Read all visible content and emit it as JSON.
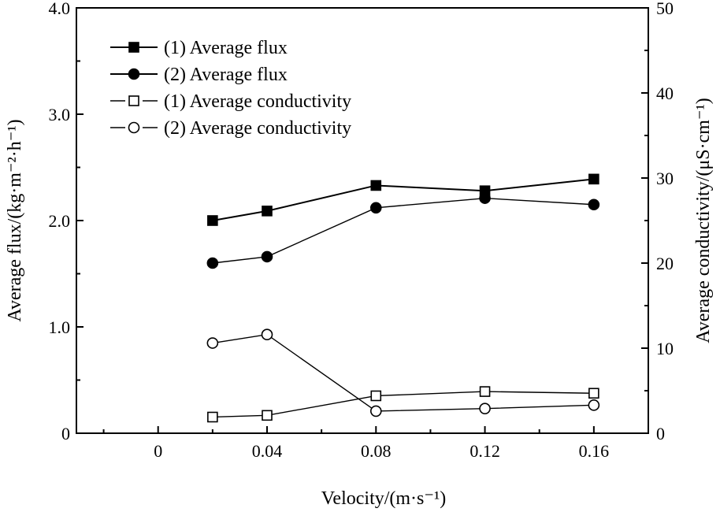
{
  "chart_data": {
    "type": "line",
    "xlabel": "Velocity/(m·s⁻¹)",
    "ylabel_left": "Average flux/(kg·m⁻²·h⁻¹)",
    "ylabel_right": "Average conductivity/(μS·cm⁻¹)",
    "xlim": [
      -0.03,
      0.18
    ],
    "ylim_left": [
      0,
      4.0
    ],
    "ylim_right": [
      0,
      50
    ],
    "x_ticks": [
      0,
      0.04,
      0.08,
      0.12,
      0.16
    ],
    "x_tick_labels": [
      "0",
      "0.04",
      "0.08",
      "0.12",
      "0.16"
    ],
    "y_left_ticks": [
      0,
      1.0,
      2.0,
      3.0,
      4.0
    ],
    "y_left_tick_labels": [
      "0",
      "1.0",
      "2.0",
      "3.0",
      "4.0"
    ],
    "y_right_ticks": [
      0,
      10,
      20,
      30,
      40,
      50
    ],
    "y_right_tick_labels": [
      "0",
      "10",
      "20",
      "30",
      "40",
      "50"
    ],
    "grid": false,
    "legend_position": "top-left",
    "series": [
      {
        "name": "(1) Average flux",
        "axis": "left",
        "marker": "square-filled",
        "color": "#000000",
        "x": [
          0.02,
          0.04,
          0.08,
          0.12,
          0.16
        ],
        "y": [
          2.0,
          2.09,
          2.33,
          2.28,
          2.39
        ]
      },
      {
        "name": "(2) Average flux",
        "axis": "left",
        "marker": "circle-filled",
        "color": "#000000",
        "x": [
          0.02,
          0.04,
          0.08,
          0.12,
          0.16
        ],
        "y": [
          1.6,
          1.66,
          2.12,
          2.21,
          2.15
        ]
      },
      {
        "name": "(1) Average conductivity",
        "axis": "right",
        "marker": "square-open",
        "color": "#000000",
        "x": [
          0.02,
          0.04,
          0.08,
          0.12,
          0.16
        ],
        "y": [
          1.9,
          2.1,
          4.4,
          4.9,
          4.7
        ]
      },
      {
        "name": "(2) Average conductivity",
        "axis": "right",
        "marker": "circle-open",
        "color": "#000000",
        "x": [
          0.02,
          0.04,
          0.08,
          0.12,
          0.16
        ],
        "y": [
          10.6,
          11.6,
          2.6,
          2.9,
          3.3
        ]
      }
    ]
  }
}
